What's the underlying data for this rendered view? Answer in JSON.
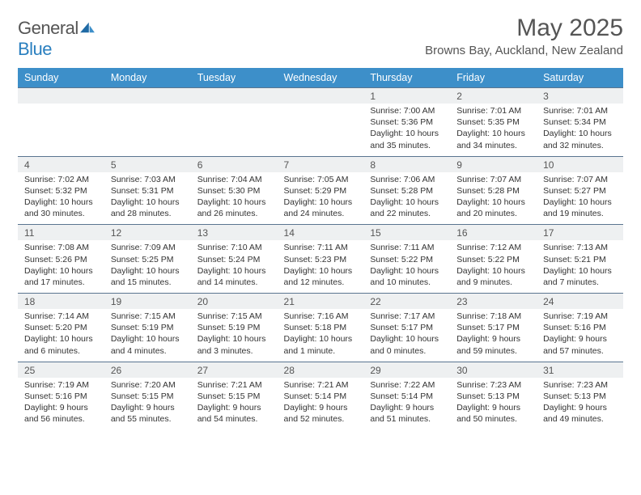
{
  "brand": {
    "part1": "General",
    "part2": "Blue"
  },
  "header": {
    "title": "May 2025",
    "location": "Browns Bay, Auckland, New Zealand"
  },
  "colors": {
    "header_bg": "#3d8fc9",
    "daybar_bg": "#eef0f1",
    "daybar_border": "#5a7590",
    "text": "#333333",
    "muted": "#555555"
  },
  "layout": {
    "columns": 7,
    "weeks": 5,
    "font": "Arial",
    "header_fontsize": 12.5,
    "cell_fontsize": 10.5
  },
  "weekdays": [
    "Sunday",
    "Monday",
    "Tuesday",
    "Wednesday",
    "Thursday",
    "Friday",
    "Saturday"
  ],
  "weeks": [
    [
      null,
      null,
      null,
      null,
      {
        "d": "1",
        "sr": "7:00 AM",
        "ss": "5:36 PM",
        "dl": "10 hours and 35 minutes."
      },
      {
        "d": "2",
        "sr": "7:01 AM",
        "ss": "5:35 PM",
        "dl": "10 hours and 34 minutes."
      },
      {
        "d": "3",
        "sr": "7:01 AM",
        "ss": "5:34 PM",
        "dl": "10 hours and 32 minutes."
      }
    ],
    [
      {
        "d": "4",
        "sr": "7:02 AM",
        "ss": "5:32 PM",
        "dl": "10 hours and 30 minutes."
      },
      {
        "d": "5",
        "sr": "7:03 AM",
        "ss": "5:31 PM",
        "dl": "10 hours and 28 minutes."
      },
      {
        "d": "6",
        "sr": "7:04 AM",
        "ss": "5:30 PM",
        "dl": "10 hours and 26 minutes."
      },
      {
        "d": "7",
        "sr": "7:05 AM",
        "ss": "5:29 PM",
        "dl": "10 hours and 24 minutes."
      },
      {
        "d": "8",
        "sr": "7:06 AM",
        "ss": "5:28 PM",
        "dl": "10 hours and 22 minutes."
      },
      {
        "d": "9",
        "sr": "7:07 AM",
        "ss": "5:28 PM",
        "dl": "10 hours and 20 minutes."
      },
      {
        "d": "10",
        "sr": "7:07 AM",
        "ss": "5:27 PM",
        "dl": "10 hours and 19 minutes."
      }
    ],
    [
      {
        "d": "11",
        "sr": "7:08 AM",
        "ss": "5:26 PM",
        "dl": "10 hours and 17 minutes."
      },
      {
        "d": "12",
        "sr": "7:09 AM",
        "ss": "5:25 PM",
        "dl": "10 hours and 15 minutes."
      },
      {
        "d": "13",
        "sr": "7:10 AM",
        "ss": "5:24 PM",
        "dl": "10 hours and 14 minutes."
      },
      {
        "d": "14",
        "sr": "7:11 AM",
        "ss": "5:23 PM",
        "dl": "10 hours and 12 minutes."
      },
      {
        "d": "15",
        "sr": "7:11 AM",
        "ss": "5:22 PM",
        "dl": "10 hours and 10 minutes."
      },
      {
        "d": "16",
        "sr": "7:12 AM",
        "ss": "5:22 PM",
        "dl": "10 hours and 9 minutes."
      },
      {
        "d": "17",
        "sr": "7:13 AM",
        "ss": "5:21 PM",
        "dl": "10 hours and 7 minutes."
      }
    ],
    [
      {
        "d": "18",
        "sr": "7:14 AM",
        "ss": "5:20 PM",
        "dl": "10 hours and 6 minutes."
      },
      {
        "d": "19",
        "sr": "7:15 AM",
        "ss": "5:19 PM",
        "dl": "10 hours and 4 minutes."
      },
      {
        "d": "20",
        "sr": "7:15 AM",
        "ss": "5:19 PM",
        "dl": "10 hours and 3 minutes."
      },
      {
        "d": "21",
        "sr": "7:16 AM",
        "ss": "5:18 PM",
        "dl": "10 hours and 1 minute."
      },
      {
        "d": "22",
        "sr": "7:17 AM",
        "ss": "5:17 PM",
        "dl": "10 hours and 0 minutes."
      },
      {
        "d": "23",
        "sr": "7:18 AM",
        "ss": "5:17 PM",
        "dl": "9 hours and 59 minutes."
      },
      {
        "d": "24",
        "sr": "7:19 AM",
        "ss": "5:16 PM",
        "dl": "9 hours and 57 minutes."
      }
    ],
    [
      {
        "d": "25",
        "sr": "7:19 AM",
        "ss": "5:16 PM",
        "dl": "9 hours and 56 minutes."
      },
      {
        "d": "26",
        "sr": "7:20 AM",
        "ss": "5:15 PM",
        "dl": "9 hours and 55 minutes."
      },
      {
        "d": "27",
        "sr": "7:21 AM",
        "ss": "5:15 PM",
        "dl": "9 hours and 54 minutes."
      },
      {
        "d": "28",
        "sr": "7:21 AM",
        "ss": "5:14 PM",
        "dl": "9 hours and 52 minutes."
      },
      {
        "d": "29",
        "sr": "7:22 AM",
        "ss": "5:14 PM",
        "dl": "9 hours and 51 minutes."
      },
      {
        "d": "30",
        "sr": "7:23 AM",
        "ss": "5:13 PM",
        "dl": "9 hours and 50 minutes."
      },
      {
        "d": "31",
        "sr": "7:23 AM",
        "ss": "5:13 PM",
        "dl": "9 hours and 49 minutes."
      }
    ]
  ],
  "labels": {
    "sunrise": "Sunrise: ",
    "sunset": "Sunset: ",
    "daylight": "Daylight: "
  }
}
